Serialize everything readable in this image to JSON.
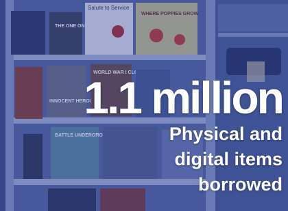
{
  "stat": {
    "headline": "1.1 million",
    "caption": [
      "Physical and",
      "digital items",
      "borrowed"
    ]
  },
  "books": {
    "top_left": [
      "Salute to Service"
    ],
    "posters": [
      "WHERE POPPIES GROW",
      "WORLD WAR I CLOSE UP",
      "INNOCENT HEROES",
      "BATTLE UNDERGROUND",
      "THE ONE ON WAR"
    ]
  }
}
